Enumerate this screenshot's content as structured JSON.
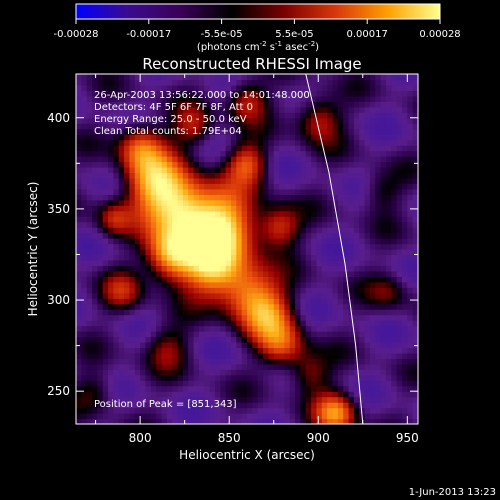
{
  "colorbar": {
    "ticks": [
      "-0.00028",
      "-0.00017",
      "-5.5e-05",
      "5.5e-05",
      "0.00017",
      "0.00028"
    ],
    "unit_label": "(photons cm",
    "unit_sup1": "-2",
    "unit_mid": " s",
    "unit_sup2": "-1",
    "unit_end": " asec",
    "unit_sup3": "-2",
    "unit_close": ")",
    "stops": [
      "#0000ff",
      "#3b0b8e",
      "#3a0059",
      "#000000",
      "#7a0000",
      "#d8380a",
      "#ffa000",
      "#ffff90"
    ]
  },
  "chart_data": {
    "type": "heatmap",
    "title": "Reconstructed RHESSI Image",
    "xlabel": "Heliocentric X (arcsec)",
    "ylabel": "Heliocentric Y (arcsec)",
    "xlim": [
      764,
      956
    ],
    "ylim": [
      232,
      424
    ],
    "xticks": [
      {
        "value": 800,
        "label": "800"
      },
      {
        "value": 850,
        "label": "850"
      },
      {
        "value": 900,
        "label": "900"
      },
      {
        "value": 950,
        "label": "950"
      }
    ],
    "yticks": [
      {
        "value": 250,
        "label": "250"
      },
      {
        "value": 300,
        "label": "300"
      },
      {
        "value": 350,
        "label": "350"
      },
      {
        "value": 400,
        "label": "400"
      }
    ],
    "color_range": [
      -0.00028,
      0.00028
    ],
    "peak": [
      851,
      343
    ],
    "limb": [
      [
        893,
        424
      ],
      [
        906,
        370
      ],
      [
        915,
        320
      ],
      [
        921,
        275
      ],
      [
        925,
        232
      ]
    ],
    "info_lines": [
      "26-Apr-2003 13:56:22.000 to 14:01:48.000",
      "Detectors: 4F 5F 6F 7F 8F, Att 0",
      "Energy Range: 25.0 - 50.0 keV",
      "Clean    Total counts: 1.79E+04"
    ],
    "peak_label": "Position of Peak = [851,343]"
  },
  "footer": {
    "timestamp": "1-Jun-2013 13:23"
  }
}
